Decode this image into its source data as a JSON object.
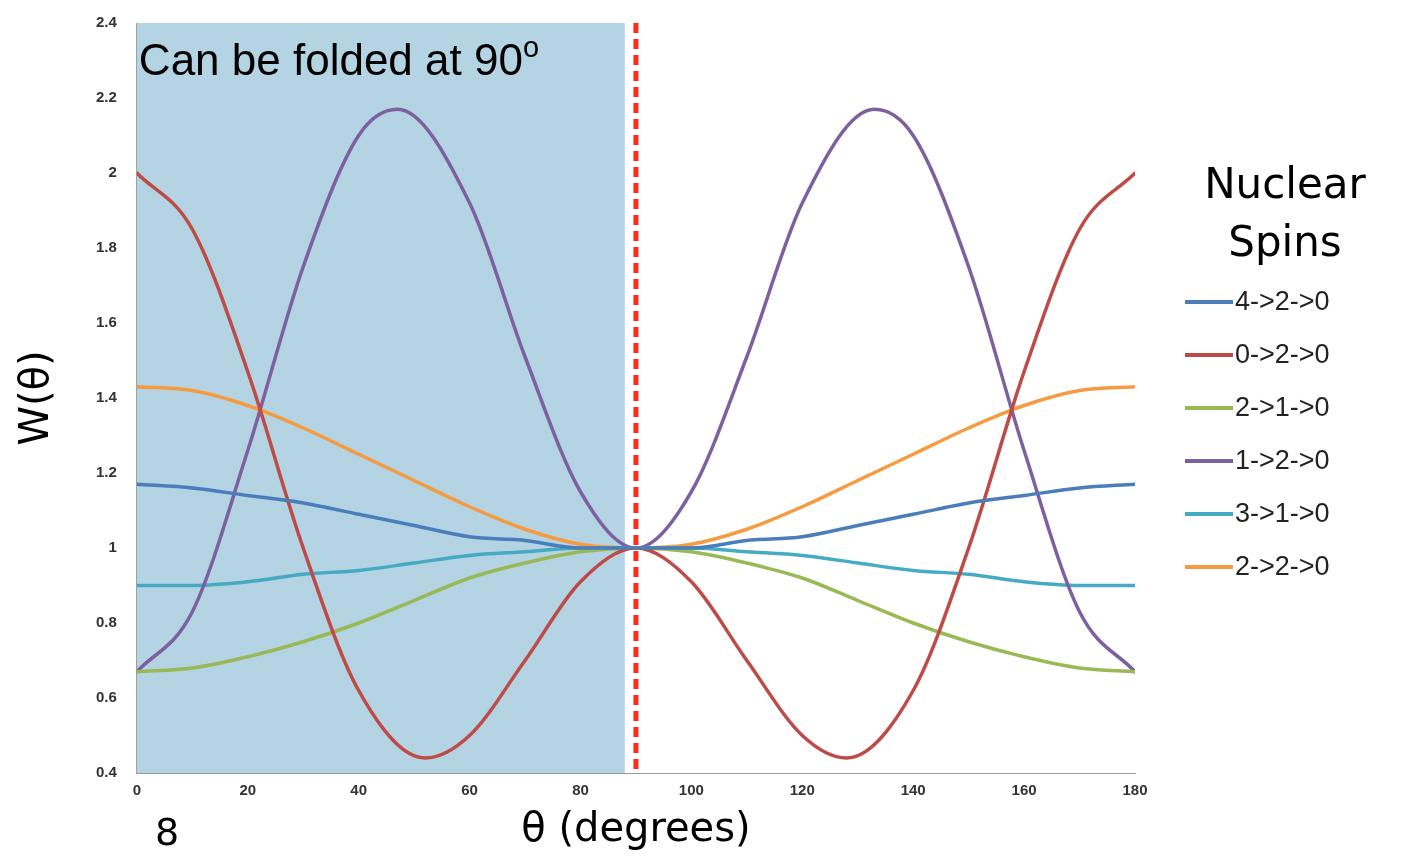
{
  "chart_data": {
    "type": "line",
    "xlabel": "θ (degrees)",
    "ylabel": "W(θ)",
    "legend_title": "Nuclear Spins",
    "legend": "right",
    "grid": false,
    "marker": "none",
    "line_style": "solid",
    "x": [
      0,
      10,
      20,
      30,
      40,
      50,
      60,
      70,
      80,
      90,
      100,
      110,
      120,
      130,
      140,
      150,
      160,
      170,
      180
    ],
    "xlim": [
      0,
      180
    ],
    "xticks": [
      0,
      20,
      40,
      60,
      80,
      100,
      120,
      140,
      160,
      180
    ],
    "ylim": [
      0.4,
      2.4
    ],
    "yticks": [
      0.4,
      0.6,
      0.8,
      1,
      1.2,
      1.4,
      1.6,
      1.8,
      2,
      2.2,
      2.4
    ],
    "series": [
      {
        "name": "4->2->0",
        "color": "#4a7ebb",
        "values": [
          1.17,
          1.16,
          1.14,
          1.12,
          1.09,
          1.06,
          1.03,
          1.02,
          1.0,
          1.0,
          1.0,
          1.02,
          1.03,
          1.06,
          1.09,
          1.12,
          1.14,
          1.16,
          1.17
        ]
      },
      {
        "name": "0->2->0",
        "color": "#be4b48",
        "x": [
          0,
          10,
          20,
          30,
          40,
          52,
          60,
          70,
          80,
          90,
          100,
          110,
          120,
          128,
          140,
          150,
          160,
          170,
          180
        ],
        "values": [
          2.0,
          1.85,
          1.47,
          1.0,
          0.62,
          0.44,
          0.5,
          0.7,
          0.91,
          1.0,
          0.91,
          0.7,
          0.5,
          0.44,
          0.62,
          1.0,
          1.47,
          1.85,
          2.0
        ]
      },
      {
        "name": "2->1->0",
        "color": "#98b954",
        "values": [
          0.67,
          0.68,
          0.71,
          0.75,
          0.8,
          0.86,
          0.92,
          0.96,
          0.99,
          1.0,
          0.99,
          0.96,
          0.92,
          0.86,
          0.8,
          0.75,
          0.71,
          0.68,
          0.67
        ]
      },
      {
        "name": "1->2->0",
        "color": "#7d60a0",
        "x": [
          0,
          10,
          20,
          30,
          40,
          47,
          60,
          70,
          80,
          90,
          100,
          110,
          120,
          133,
          140,
          150,
          160,
          170,
          180
        ],
        "values": [
          0.67,
          0.83,
          1.26,
          1.75,
          2.1,
          2.17,
          1.92,
          1.51,
          1.15,
          1.0,
          1.15,
          1.51,
          1.92,
          2.17,
          2.1,
          1.75,
          1.26,
          0.83,
          0.67
        ]
      },
      {
        "name": "3->1->0",
        "color": "#46aac5",
        "values": [
          0.9,
          0.9,
          0.91,
          0.93,
          0.94,
          0.96,
          0.98,
          0.99,
          1.0,
          1.0,
          1.0,
          0.99,
          0.98,
          0.96,
          0.94,
          0.93,
          0.91,
          0.9,
          0.9
        ]
      },
      {
        "name": "2->2->0",
        "color": "#f69b3f",
        "values": [
          1.43,
          1.42,
          1.38,
          1.32,
          1.25,
          1.18,
          1.11,
          1.05,
          1.01,
          1.0,
          1.01,
          1.05,
          1.11,
          1.18,
          1.25,
          1.32,
          1.38,
          1.42,
          1.43
        ]
      }
    ],
    "bands": [
      {
        "axis": "x",
        "from": 0,
        "to": 88,
        "color": "#b4d3e3",
        "label": "Can be folded at 90$^{o}$"
      }
    ],
    "ref_lines": [
      {
        "axis": "x",
        "value": 90,
        "color": "#ff2a1a",
        "line_style": "dashed"
      }
    ],
    "annotations": [
      "8"
    ]
  }
}
